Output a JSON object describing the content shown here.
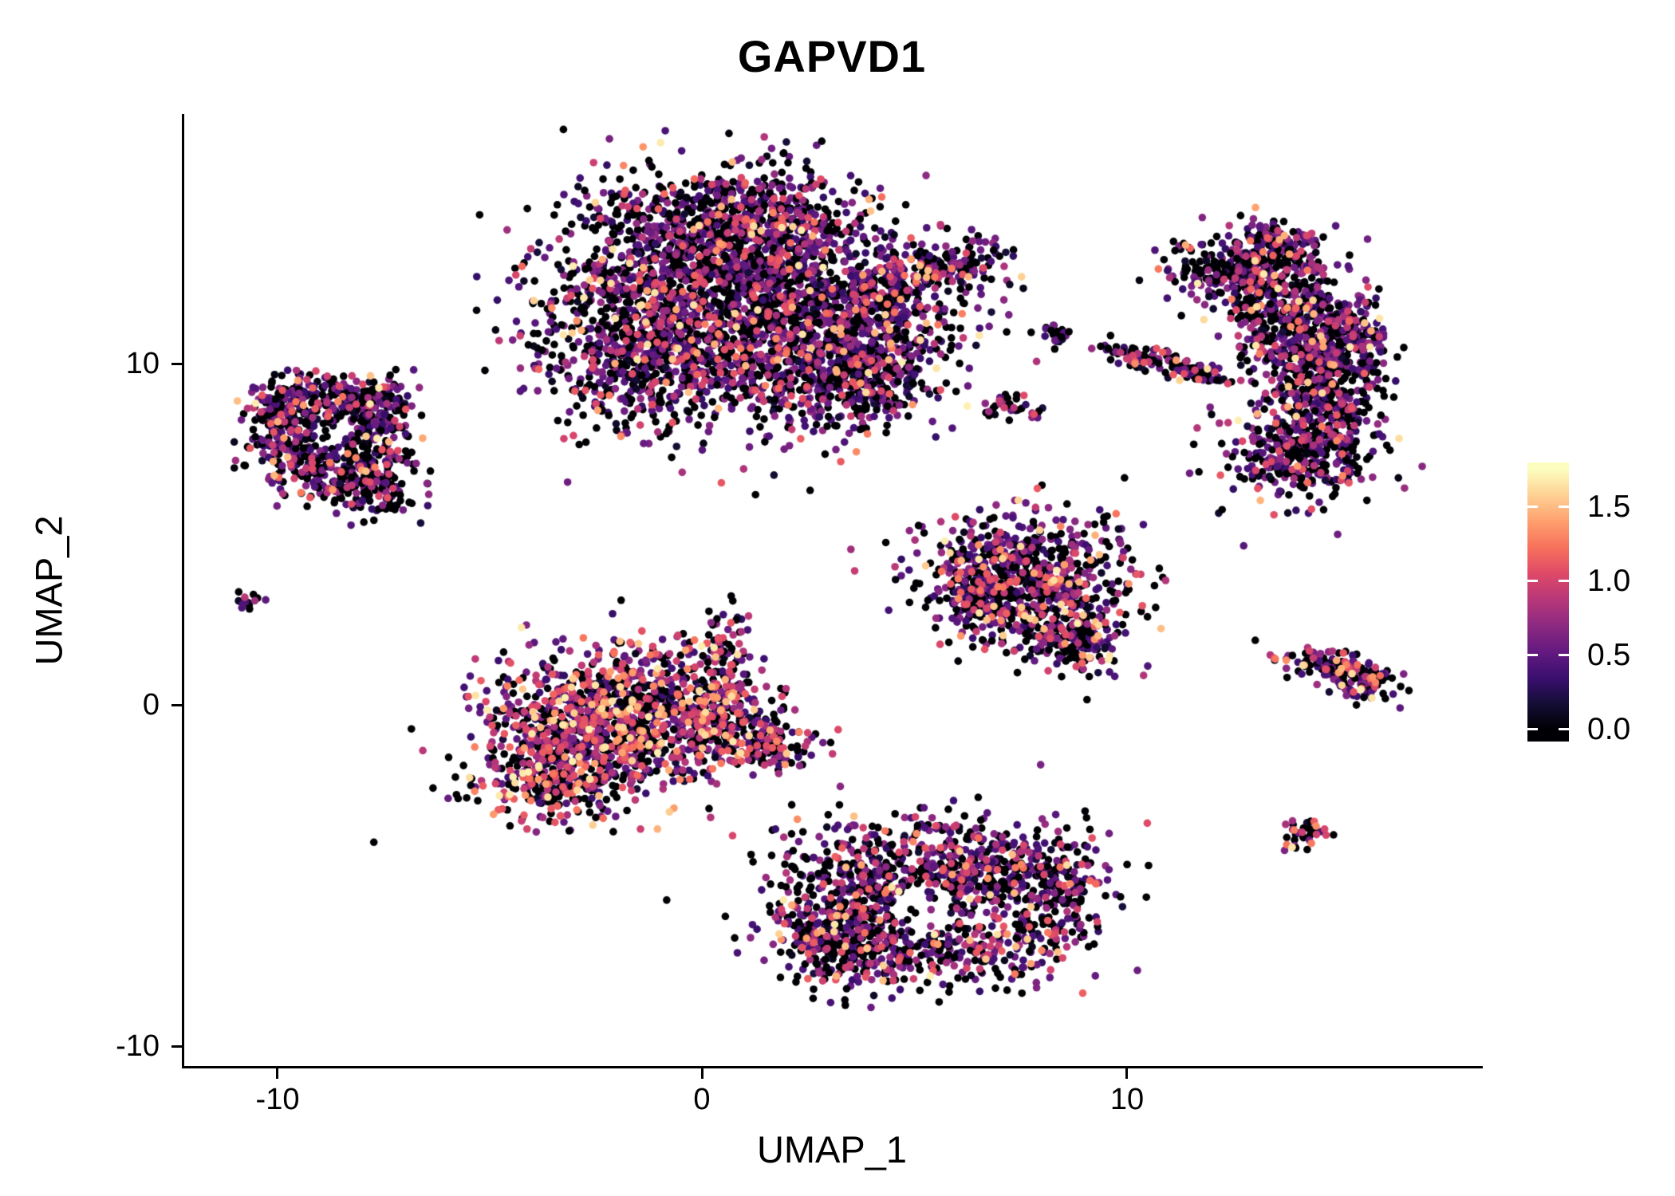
{
  "title": "GAPVD1",
  "background": "#ffffff",
  "axis_color": "#000000",
  "text_color": "#000000",
  "axes": {
    "x_label": "UMAP_1",
    "y_label": "UMAP_2",
    "x_ticks": [
      "-10",
      "0",
      "10"
    ],
    "y_ticks": [
      "10",
      "0",
      "-10"
    ],
    "x_tick_values": [
      -10,
      0,
      10
    ],
    "y_tick_values": [
      10,
      0,
      -10
    ]
  },
  "legend": {
    "ticks": [
      "1.5",
      "1.0",
      "0.5",
      "0.0"
    ],
    "tick_values": [
      1.5,
      1.0,
      0.5,
      0.0
    ],
    "bar_vmin": -0.08,
    "bar_vmax": 1.8
  },
  "chart_data": {
    "type": "scatter",
    "title": "GAPVD1",
    "xlabel": "UMAP_1",
    "ylabel": "UMAP_2",
    "xlim": [
      -12.19,
      18.31
    ],
    "ylim": [
      -10.58,
      17.32
    ],
    "x_axis_ticks": [
      -10,
      0,
      10
    ],
    "y_axis_ticks": [
      -10,
      0,
      10
    ],
    "grid": false,
    "legend_position": "right",
    "colormap": "magma",
    "colormap_stops": [
      "#000004",
      "#140e36",
      "#3b0f70",
      "#641a80",
      "#8c2981",
      "#b73779",
      "#de4968",
      "#f7705c",
      "#fe9f6d",
      "#fecf92",
      "#fcfdbf"
    ],
    "color_scale_max": 1.75,
    "colorbar_ticks": [
      0.0,
      0.5,
      1.0,
      1.5
    ],
    "point_radius_px": 4.8,
    "n_points_approx": 11000,
    "seed": 42,
    "clusters": [
      {
        "name": "top-center-main",
        "mix": {
          "zero": 0.45,
          "low": 0.41,
          "mid": 0.1,
          "high": 0.04
        },
        "blobs": [
          {
            "x": 0.2,
            "y": 12.6,
            "sx": 2.0,
            "sy": 1.6,
            "n": 1500
          },
          {
            "x": 2.4,
            "y": 10.8,
            "sx": 1.7,
            "sy": 1.4,
            "n": 1100
          },
          {
            "x": -1.6,
            "y": 10.3,
            "sx": 1.1,
            "sy": 1.2,
            "n": 450
          },
          {
            "x": 1.0,
            "y": 14.3,
            "sx": 1.4,
            "sy": 0.7,
            "n": 300
          },
          {
            "x": 3.8,
            "y": 9.5,
            "sx": 0.9,
            "sy": 0.7,
            "n": 250
          },
          {
            "x": 5.1,
            "y": 12.7,
            "sx": 0.8,
            "sy": 0.35,
            "angle": 15,
            "n": 150
          },
          {
            "x": 6.3,
            "y": 12.9,
            "sx": 0.45,
            "sy": 0.3,
            "n": 40
          },
          {
            "x": 4.3,
            "y": 11.7,
            "sx": 0.5,
            "sy": 0.45,
            "n": 90
          }
        ]
      },
      {
        "name": "left-ring",
        "mix": {
          "zero": 0.47,
          "low": 0.39,
          "mid": 0.1,
          "high": 0.04
        },
        "blobs": [
          {
            "shape": "ring",
            "x": -8.8,
            "y": 7.9,
            "r": 1.25,
            "sr": 0.45,
            "n": 650
          },
          {
            "x": -7.7,
            "y": 6.3,
            "sx": 0.5,
            "sy": 0.45,
            "n": 110
          },
          {
            "x": -9.9,
            "y": 8.8,
            "sx": 0.45,
            "sy": 0.4,
            "n": 70
          },
          {
            "x": -7.4,
            "y": 8.9,
            "sx": 0.4,
            "sy": 0.35,
            "n": 60
          }
        ]
      },
      {
        "name": "far-left-dot",
        "mix": {
          "zero": 0.5,
          "low": 0.3,
          "mid": 0.2,
          "high": 0.0
        },
        "blobs": [
          {
            "x": -10.7,
            "y": 3.0,
            "sx": 0.18,
            "sy": 0.14,
            "n": 14
          }
        ]
      },
      {
        "name": "center-left-warm",
        "mix": {
          "zero": 0.37,
          "low": 0.3,
          "mid": 0.22,
          "high": 0.11
        },
        "blobs": [
          {
            "x": -2.6,
            "y": -0.7,
            "sx": 1.4,
            "sy": 1.1,
            "n": 850
          },
          {
            "x": -0.8,
            "y": 0.2,
            "sx": 1.2,
            "sy": 0.8,
            "n": 420
          },
          {
            "x": -3.5,
            "y": -2.1,
            "sx": 0.8,
            "sy": 0.6,
            "n": 200
          },
          {
            "x": 0.9,
            "y": -0.9,
            "sx": 0.8,
            "sy": 0.5,
            "n": 170
          },
          {
            "x": 0.5,
            "y": 1.5,
            "sx": 0.3,
            "sy": 0.7,
            "n": 80
          },
          {
            "x": 1.6,
            "y": -1.3,
            "sx": 0.4,
            "sy": 0.3,
            "n": 60
          }
        ]
      },
      {
        "name": "bottom-center",
        "mix": {
          "zero": 0.46,
          "low": 0.37,
          "mid": 0.12,
          "high": 0.05
        },
        "holes": [
          {
            "x": 5.2,
            "y": -6.0,
            "r": 0.75
          }
        ],
        "blobs": [
          {
            "x": 3.9,
            "y": -5.3,
            "sx": 1.1,
            "sy": 1.0,
            "n": 480
          },
          {
            "x": 6.6,
            "y": -4.9,
            "sx": 1.3,
            "sy": 0.8,
            "n": 500
          },
          {
            "x": 5.3,
            "y": -7.2,
            "sx": 1.6,
            "sy": 0.6,
            "n": 350
          },
          {
            "x": 3.2,
            "y": -7.0,
            "sx": 0.6,
            "sy": 0.7,
            "n": 160
          },
          {
            "x": 8.4,
            "y": -5.8,
            "sx": 0.5,
            "sy": 0.8,
            "n": 130
          }
        ]
      },
      {
        "name": "mid-right-triangle",
        "mix": {
          "zero": 0.43,
          "low": 0.37,
          "mid": 0.14,
          "high": 0.06
        },
        "blobs": [
          {
            "x": 7.6,
            "y": 4.1,
            "sx": 1.3,
            "sy": 0.8,
            "n": 480
          },
          {
            "x": 8.1,
            "y": 2.7,
            "sx": 1.0,
            "sy": 0.7,
            "n": 300
          },
          {
            "x": 8.9,
            "y": 1.9,
            "sx": 0.5,
            "sy": 0.4,
            "n": 110
          },
          {
            "x": 6.6,
            "y": 3.2,
            "sx": 0.5,
            "sy": 0.6,
            "n": 110
          }
        ]
      },
      {
        "name": "right-crescent",
        "mix": {
          "zero": 0.46,
          "low": 0.4,
          "mid": 0.1,
          "high": 0.04
        },
        "blobs": [
          {
            "x": 12.9,
            "y": 12.7,
            "sx": 0.9,
            "sy": 0.6,
            "n": 320
          },
          {
            "x": 13.6,
            "y": 13.5,
            "sx": 0.6,
            "sy": 0.35,
            "n": 120
          },
          {
            "x": 14.1,
            "y": 11.3,
            "sx": 0.8,
            "sy": 0.8,
            "n": 380
          },
          {
            "x": 14.6,
            "y": 9.4,
            "sx": 0.7,
            "sy": 0.9,
            "n": 400
          },
          {
            "x": 14.1,
            "y": 7.4,
            "sx": 0.9,
            "sy": 0.7,
            "n": 340
          },
          {
            "x": 15.4,
            "y": 10.5,
            "sx": 0.4,
            "sy": 0.6,
            "n": 100
          }
        ]
      },
      {
        "name": "small-mid-fragments",
        "mix": {
          "zero": 0.5,
          "low": 0.37,
          "mid": 0.1,
          "high": 0.03
        },
        "blobs": [
          {
            "x": 8.35,
            "y": 10.85,
            "sx": 0.22,
            "sy": 0.18,
            "n": 25
          },
          {
            "x": 10.5,
            "y": 10.15,
            "sx": 0.55,
            "sy": 0.16,
            "angle": -10,
            "n": 85
          },
          {
            "x": 11.6,
            "y": 9.7,
            "sx": 0.45,
            "sy": 0.14,
            "angle": -14,
            "n": 55
          },
          {
            "x": 7.1,
            "y": 8.8,
            "sx": 0.28,
            "sy": 0.2,
            "n": 28
          },
          {
            "x": 7.9,
            "y": 8.55,
            "sx": 0.12,
            "sy": 0.1,
            "n": 7
          }
        ]
      },
      {
        "name": "right-small-wedge",
        "mix": {
          "zero": 0.42,
          "low": 0.37,
          "mid": 0.14,
          "high": 0.07
        },
        "blobs": [
          {
            "x": 14.9,
            "y": 1.1,
            "sx": 0.75,
            "sy": 0.25,
            "angle": -18,
            "n": 150
          },
          {
            "x": 15.6,
            "y": 0.5,
            "sx": 0.3,
            "sy": 0.22,
            "n": 45
          }
        ]
      },
      {
        "name": "tiny-bottom-right",
        "mix": {
          "zero": 0.42,
          "low": 0.3,
          "mid": 0.16,
          "high": 0.12
        },
        "blobs": [
          {
            "x": 14.2,
            "y": -3.7,
            "sx": 0.27,
            "sy": 0.25,
            "n": 34
          }
        ]
      }
    ]
  }
}
